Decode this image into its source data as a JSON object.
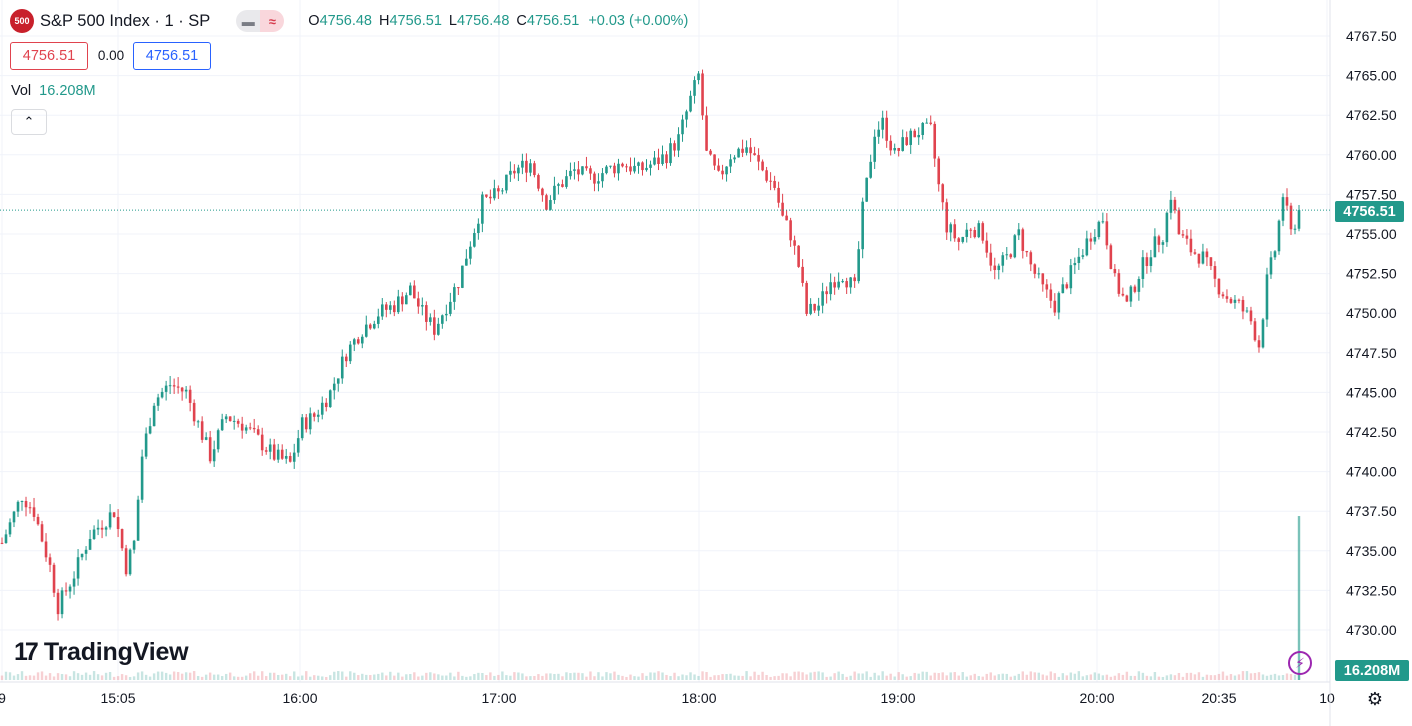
{
  "symbol": {
    "badge": "500",
    "title": "S&P 500 Index · 1 · SP"
  },
  "ohlc": {
    "o_label": "O",
    "o": "4756.48",
    "h_label": "H",
    "h": "4756.51",
    "l_label": "L",
    "l": "4756.48",
    "c_label": "C",
    "c": "4756.51",
    "change": "+0.03 (+0.00%)"
  },
  "quote": {
    "sell": "4756.51",
    "spread": "0.00",
    "buy": "4756.51"
  },
  "volume": {
    "label": "Vol",
    "value": "16.208M"
  },
  "icons": {
    "collapse": "chevron-up-icon",
    "logo": "tradingview-logo-icon",
    "bolt": "lightning-icon",
    "settings": "gear-icon",
    "compare": "compare-icon"
  },
  "collapse_glyph": "⌃",
  "logo": {
    "mark": "17",
    "text": "TradingView"
  },
  "last_price_tag": "4756.51",
  "last_volume_tag": "16.208M",
  "colors": {
    "up": "#22998b",
    "down": "#e0434e",
    "grid": "#f0f3fa",
    "badge": "#c8202b",
    "bolt": "#9c27b0"
  },
  "chart_data": {
    "type": "candlestick",
    "y_axis": {
      "ticks": [
        4767.5,
        4765,
        4762.5,
        4760,
        4757.5,
        4755,
        4752.5,
        4750,
        4747.5,
        4745,
        4742.5,
        4740,
        4737.5,
        4735,
        4732.5,
        4730
      ],
      "ylim": [
        4728.5,
        4768.3
      ]
    },
    "x_axis": {
      "labels": [
        "9",
        "15:05",
        "16:00",
        "17:00",
        "18:00",
        "19:00",
        "20:00",
        "20:35",
        "10"
      ]
    },
    "last_price": 4756.51,
    "last_volume": "16.208M",
    "close_path": [
      {
        "t": 0,
        "p": 4735.5
      },
      {
        "t": 5,
        "p": 4738.5
      },
      {
        "t": 8,
        "p": 4737.5
      },
      {
        "t": 12,
        "p": 4734
      },
      {
        "t": 14,
        "p": 4731.5
      },
      {
        "t": 18,
        "p": 4733.5
      },
      {
        "t": 22,
        "p": 4736
      },
      {
        "t": 28,
        "p": 4737.5
      },
      {
        "t": 31,
        "p": 4734
      },
      {
        "t": 33,
        "p": 4735.5
      },
      {
        "t": 35,
        "p": 4741
      },
      {
        "t": 38,
        "p": 4744.5
      },
      {
        "t": 42,
        "p": 4745.5
      },
      {
        "t": 46,
        "p": 4745
      },
      {
        "t": 49,
        "p": 4743
      },
      {
        "t": 52,
        "p": 4741
      },
      {
        "t": 56,
        "p": 4743.5
      },
      {
        "t": 60,
        "p": 4743
      },
      {
        "t": 64,
        "p": 4742
      },
      {
        "t": 68,
        "p": 4741
      },
      {
        "t": 72,
        "p": 4740.5
      },
      {
        "t": 75,
        "p": 4743
      },
      {
        "t": 78,
        "p": 4743.5
      },
      {
        "t": 82,
        "p": 4745
      },
      {
        "t": 86,
        "p": 4747.5
      },
      {
        "t": 90,
        "p": 4749
      },
      {
        "t": 94,
        "p": 4750
      },
      {
        "t": 98,
        "p": 4750.5
      },
      {
        "t": 102,
        "p": 4751.5
      },
      {
        "t": 105,
        "p": 4750
      },
      {
        "t": 108,
        "p": 4749
      },
      {
        "t": 111,
        "p": 4750.5
      },
      {
        "t": 114,
        "p": 4752
      },
      {
        "t": 117,
        "p": 4754.5
      },
      {
        "t": 120,
        "p": 4757
      },
      {
        "t": 124,
        "p": 4757.5
      },
      {
        "t": 128,
        "p": 4759
      },
      {
        "t": 132,
        "p": 4759.5
      },
      {
        "t": 136,
        "p": 4757
      },
      {
        "t": 139,
        "p": 4758
      },
      {
        "t": 143,
        "p": 4759
      },
      {
        "t": 147,
        "p": 4758.5
      },
      {
        "t": 151,
        "p": 4759
      },
      {
        "t": 155,
        "p": 4759.5
      },
      {
        "t": 159,
        "p": 4759
      },
      {
        "t": 163,
        "p": 4759.5
      },
      {
        "t": 166,
        "p": 4760
      },
      {
        "t": 169,
        "p": 4761
      },
      {
        "t": 172,
        "p": 4763.5
      },
      {
        "t": 174,
        "p": 4765
      },
      {
        "t": 176,
        "p": 4760
      },
      {
        "t": 179,
        "p": 4758.5
      },
      {
        "t": 182,
        "p": 4760
      },
      {
        "t": 186,
        "p": 4760.5
      },
      {
        "t": 190,
        "p": 4759
      },
      {
        "t": 193,
        "p": 4758
      },
      {
        "t": 195,
        "p": 4756
      },
      {
        "t": 197,
        "p": 4755
      },
      {
        "t": 199,
        "p": 4753
      },
      {
        "t": 201,
        "p": 4750
      },
      {
        "t": 204,
        "p": 4750.5
      },
      {
        "t": 207,
        "p": 4752
      },
      {
        "t": 210,
        "p": 4752.5
      },
      {
        "t": 213,
        "p": 4751.5
      },
      {
        "t": 215,
        "p": 4756.5
      },
      {
        "t": 218,
        "p": 4761.5
      },
      {
        "t": 220,
        "p": 4762
      },
      {
        "t": 223,
        "p": 4760
      },
      {
        "t": 226,
        "p": 4761
      },
      {
        "t": 229,
        "p": 4761.5
      },
      {
        "t": 232,
        "p": 4761.5
      },
      {
        "t": 234,
        "p": 4758
      },
      {
        "t": 236,
        "p": 4755.5
      },
      {
        "t": 239,
        "p": 4754.5
      },
      {
        "t": 242,
        "p": 4755.5
      },
      {
        "t": 245,
        "p": 4755
      },
      {
        "t": 248,
        "p": 4752.5
      },
      {
        "t": 251,
        "p": 4753.5
      },
      {
        "t": 254,
        "p": 4755
      },
      {
        "t": 257,
        "p": 4753
      },
      {
        "t": 260,
        "p": 4751.5
      },
      {
        "t": 263,
        "p": 4750.5
      },
      {
        "t": 266,
        "p": 4752
      },
      {
        "t": 269,
        "p": 4753.5
      },
      {
        "t": 272,
        "p": 4755
      },
      {
        "t": 275,
        "p": 4756
      },
      {
        "t": 278,
        "p": 4752
      },
      {
        "t": 281,
        "p": 4750.5
      },
      {
        "t": 284,
        "p": 4752.5
      },
      {
        "t": 287,
        "p": 4754
      },
      {
        "t": 290,
        "p": 4755
      },
      {
        "t": 292,
        "p": 4757.5
      },
      {
        "t": 294,
        "p": 4755
      },
      {
        "t": 297,
        "p": 4754
      },
      {
        "t": 300,
        "p": 4753.5
      },
      {
        "t": 303,
        "p": 4752
      },
      {
        "t": 306,
        "p": 4751
      },
      {
        "t": 309,
        "p": 4750.5
      },
      {
        "t": 312,
        "p": 4749.5
      },
      {
        "t": 314,
        "p": 4748
      },
      {
        "t": 316,
        "p": 4752
      },
      {
        "t": 318,
        "p": 4754
      },
      {
        "t": 320,
        "p": 4757.5
      },
      {
        "t": 322,
        "p": 4755
      },
      {
        "t": 324,
        "p": 4756.51
      }
    ],
    "volume_spike": {
      "value_ratio": 0.96
    }
  }
}
